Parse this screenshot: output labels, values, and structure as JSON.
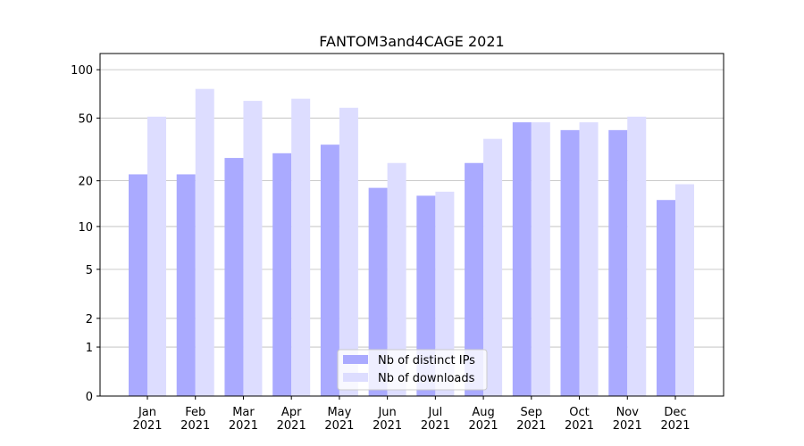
{
  "chart_data": {
    "type": "bar",
    "title": "FANTOM3and4CAGE 2021",
    "categories": [
      "Jan\n2021",
      "Feb\n2021",
      "Mar\n2021",
      "Apr\n2021",
      "May\n2021",
      "Jun\n2021",
      "Jul\n2021",
      "Aug\n2021",
      "Sep\n2021",
      "Oct\n2021",
      "Nov\n2021",
      "Dec\n2021"
    ],
    "series": [
      {
        "name": "Nb of distinct IPs",
        "color": "#aaaaff",
        "values": [
          22,
          22,
          28,
          30,
          34,
          18,
          16,
          26,
          47,
          42,
          42,
          15
        ]
      },
      {
        "name": "Nb of downloads",
        "color": "#ddddff",
        "values": [
          51,
          76,
          64,
          66,
          58,
          26,
          17,
          37,
          47,
          47,
          51,
          19
        ]
      }
    ],
    "ylim": [
      0,
      126
    ],
    "yticks": [
      0,
      1,
      2,
      5,
      10,
      20,
      50,
      100
    ],
    "yscale": "log1p",
    "grid": true,
    "legend": "lower center"
  }
}
